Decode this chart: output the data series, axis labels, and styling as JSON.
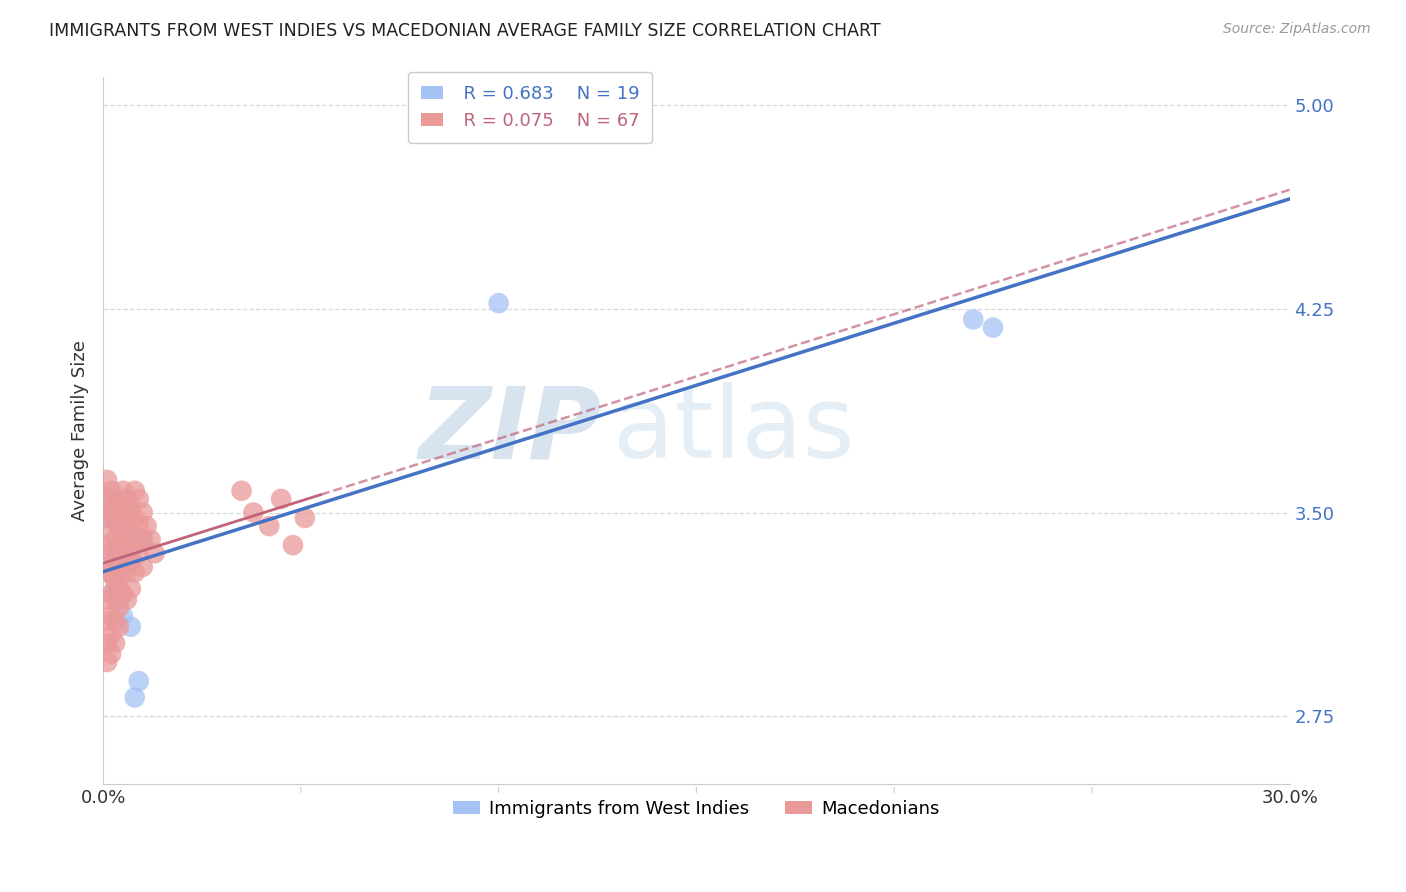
{
  "title": "IMMIGRANTS FROM WEST INDIES VS MACEDONIAN AVERAGE FAMILY SIZE CORRELATION CHART",
  "source": "Source: ZipAtlas.com",
  "ylabel": "Average Family Size",
  "xlim": [
    0.0,
    0.3
  ],
  "ylim": [
    2.5,
    5.1
  ],
  "yticks": [
    2.75,
    3.5,
    4.25,
    5.0
  ],
  "background_color": "#ffffff",
  "grid_color": "#d8d8d8",
  "watermark_zip": "ZIP",
  "watermark_atlas": "atlas",
  "series": [
    {
      "name": "Immigrants from West Indies",
      "R": 0.683,
      "N": 19,
      "color": "#a4c2f4",
      "line_color": "#4472c4",
      "line_style": "solid",
      "x": [
        0.001,
        0.002,
        0.002,
        0.003,
        0.003,
        0.004,
        0.004,
        0.005,
        0.005,
        0.006,
        0.007,
        0.007,
        0.008,
        0.008,
        0.009,
        0.01,
        0.1,
        0.22,
        0.225
      ],
      "y": [
        3.48,
        3.55,
        3.35,
        3.5,
        3.22,
        3.45,
        3.18,
        3.38,
        3.12,
        3.42,
        3.35,
        3.08,
        3.4,
        2.82,
        2.88,
        3.4,
        4.27,
        4.21,
        4.18
      ]
    },
    {
      "name": "Macedonians",
      "R": 0.075,
      "N": 67,
      "color": "#ea9999",
      "line_color": "#c0647a",
      "line_style": "dashed",
      "line_solid_end": 0.055,
      "x": [
        0.001,
        0.001,
        0.001,
        0.001,
        0.001,
        0.001,
        0.001,
        0.001,
        0.001,
        0.002,
        0.002,
        0.002,
        0.002,
        0.002,
        0.002,
        0.002,
        0.002,
        0.002,
        0.003,
        0.003,
        0.003,
        0.003,
        0.003,
        0.003,
        0.003,
        0.003,
        0.004,
        0.004,
        0.004,
        0.004,
        0.004,
        0.004,
        0.004,
        0.005,
        0.005,
        0.005,
        0.005,
        0.005,
        0.005,
        0.006,
        0.006,
        0.006,
        0.006,
        0.006,
        0.007,
        0.007,
        0.007,
        0.007,
        0.008,
        0.008,
        0.008,
        0.008,
        0.009,
        0.009,
        0.009,
        0.01,
        0.01,
        0.01,
        0.011,
        0.012,
        0.013,
        0.035,
        0.038,
        0.042,
        0.045,
        0.048,
        0.051
      ],
      "y": [
        3.62,
        3.55,
        3.48,
        3.38,
        3.28,
        3.18,
        3.1,
        3.02,
        2.95,
        3.58,
        3.5,
        3.42,
        3.35,
        3.28,
        3.2,
        3.12,
        3.05,
        2.98,
        3.55,
        3.48,
        3.4,
        3.33,
        3.25,
        3.18,
        3.1,
        3.02,
        3.52,
        3.45,
        3.38,
        3.3,
        3.22,
        3.15,
        3.08,
        3.58,
        3.5,
        3.42,
        3.35,
        3.28,
        3.2,
        3.55,
        3.48,
        3.38,
        3.28,
        3.18,
        3.52,
        3.42,
        3.32,
        3.22,
        3.58,
        3.48,
        3.38,
        3.28,
        3.55,
        3.45,
        3.35,
        3.5,
        3.4,
        3.3,
        3.45,
        3.4,
        3.35,
        3.58,
        3.5,
        3.45,
        3.55,
        3.38,
        3.48
      ]
    }
  ]
}
